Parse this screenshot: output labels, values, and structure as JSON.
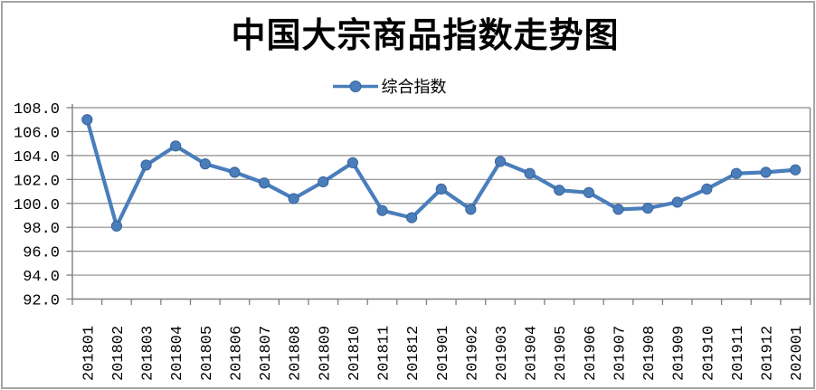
{
  "frame": {
    "border_color": "#a6a6a6",
    "background": "#ffffff"
  },
  "chart_data": {
    "type": "line",
    "title": "中国大宗商品指数走势图",
    "legend_position": "top-center",
    "grid": "horizontal",
    "categories": [
      "201801",
      "201802",
      "201803",
      "201804",
      "201805",
      "201806",
      "201807",
      "201808",
      "201809",
      "201810",
      "201811",
      "201812",
      "201901",
      "201902",
      "201903",
      "201904",
      "201905",
      "201906",
      "201907",
      "201908",
      "201909",
      "201910",
      "201911",
      "201912",
      "202001"
    ],
    "series": [
      {
        "name": "综合指数",
        "values": [
          107.0,
          98.1,
          103.2,
          104.8,
          103.3,
          102.6,
          101.7,
          100.4,
          101.8,
          103.4,
          99.4,
          98.8,
          101.2,
          99.5,
          103.5,
          102.5,
          101.1,
          100.9,
          99.5,
          99.6,
          100.1,
          101.2,
          102.5,
          102.6,
          102.8
        ],
        "color": "#4a7ebb",
        "marker": "circle",
        "marker_edge_color": "#38639d"
      }
    ],
    "ylim": [
      92.0,
      108.0
    ],
    "ytick_step": 2.0,
    "ytick_labels": [
      "108.0",
      "106.0",
      "104.0",
      "102.0",
      "100.0",
      "98.0",
      "96.0",
      "94.0",
      "92.0"
    ],
    "xlabel": "",
    "ylabel": "",
    "grid_color": "#8c8c8c",
    "axis_color": "#7f7f7f",
    "text_color": "#000000"
  }
}
